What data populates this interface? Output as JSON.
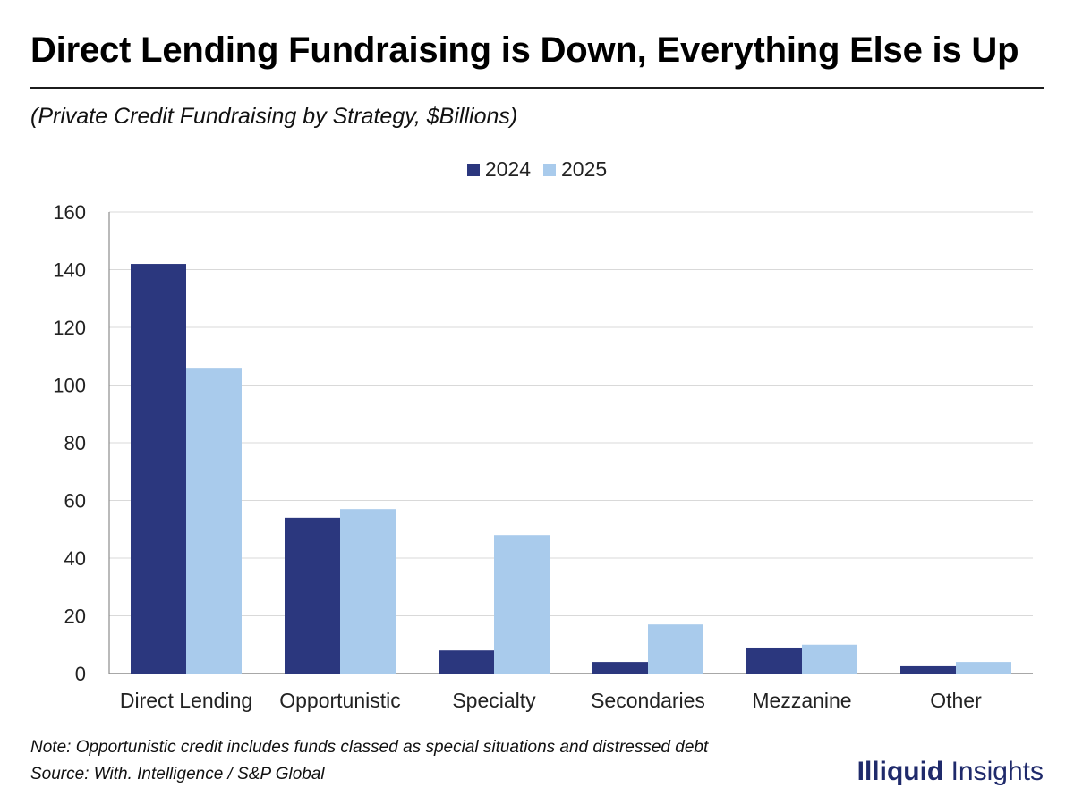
{
  "header": {
    "title": "Direct Lending Fundraising is Down, Everything Else is Up",
    "subtitle": "(Private Credit Fundraising by Strategy, $Billions)"
  },
  "footer": {
    "note": "Note: Opportunistic credit includes funds classed as special situations and distressed debt",
    "source": "Source: With. Intelligence / S&P Global",
    "brand_bold": "Illiquid",
    "brand_regular": " Insights"
  },
  "colors": {
    "series_2024": "#2b377e",
    "series_2025": "#a9cbec",
    "gridline": "#d9d9d9",
    "axis": "#8c8c8c",
    "brand": "#1f2a6b"
  },
  "chart_data": {
    "type": "bar",
    "title": "",
    "xlabel": "",
    "ylabel": "",
    "ylim": [
      0,
      160
    ],
    "yticks": [
      0,
      20,
      40,
      60,
      80,
      100,
      120,
      140,
      160
    ],
    "grid": true,
    "legend_position": "top-center",
    "categories": [
      "Direct Lending",
      "Opportunistic",
      "Specialty",
      "Secondaries",
      "Mezzanine",
      "Other"
    ],
    "series": [
      {
        "name": "2024",
        "values": [
          142,
          54,
          8,
          4,
          9,
          2.5
        ]
      },
      {
        "name": "2025",
        "values": [
          106,
          57,
          48,
          17,
          10,
          4
        ]
      }
    ]
  }
}
